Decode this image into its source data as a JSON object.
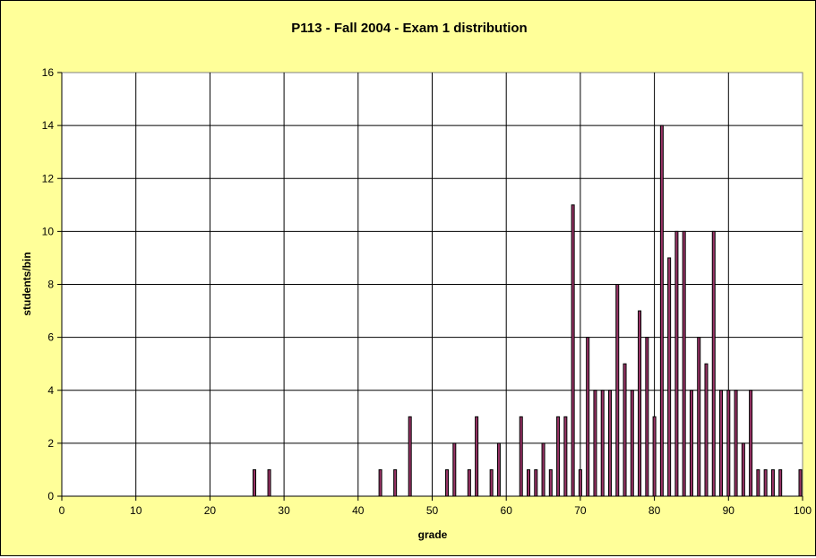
{
  "chart_data": {
    "type": "bar",
    "title": "P113 - Fall 2004 - Exam 1 distribution",
    "xlabel": "grade",
    "ylabel": "students/bin",
    "xlim": [
      0,
      100
    ],
    "ylim": [
      0,
      16
    ],
    "x_ticks": [
      "0",
      "10",
      "20",
      "30",
      "40",
      "50",
      "60",
      "70",
      "80",
      "90",
      "100"
    ],
    "y_ticks": [
      "0",
      "2",
      "4",
      "6",
      "8",
      "10",
      "12",
      "14",
      "16"
    ],
    "grid": true,
    "legend": "none",
    "colors": {
      "background": "#ffff99",
      "plot_area": "#ffffff",
      "bar_fill": "#993366",
      "bar_edge": "#000000",
      "grid": "#000000"
    },
    "x": [
      26,
      28,
      43,
      45,
      47,
      52,
      53,
      55,
      56,
      58,
      59,
      62,
      63,
      64,
      65,
      66,
      67,
      68,
      69,
      70,
      71,
      72,
      73,
      74,
      75,
      76,
      77,
      78,
      79,
      80,
      81,
      82,
      83,
      84,
      85,
      86,
      87,
      88,
      89,
      90,
      91,
      92,
      93,
      94,
      95,
      96,
      97,
      100
    ],
    "values": [
      1,
      1,
      1,
      1,
      3,
      1,
      2,
      1,
      3,
      1,
      2,
      3,
      1,
      1,
      2,
      1,
      3,
      3,
      11,
      1,
      6,
      4,
      4,
      4,
      8,
      5,
      4,
      7,
      6,
      3,
      14,
      9,
      10,
      10,
      4,
      6,
      5,
      10,
      4,
      4,
      4,
      2,
      4,
      1,
      1,
      1,
      1,
      1
    ]
  }
}
